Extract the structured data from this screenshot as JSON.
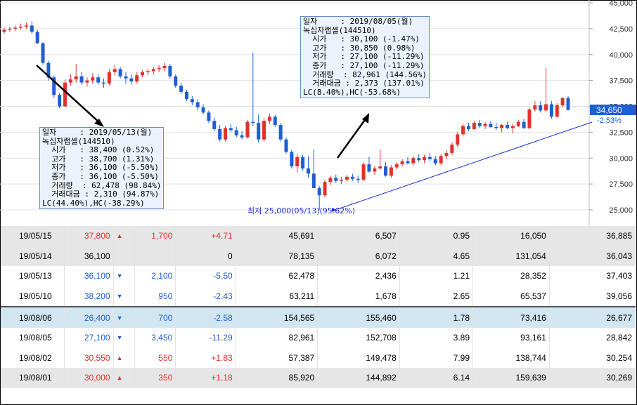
{
  "chart_data": {
    "type": "candlestick",
    "y_axis": {
      "ticks": [
        "45,000",
        "42,500",
        "40,000",
        "37,500",
        "35,000",
        "32,500",
        "30,000",
        "27,500",
        "25,000"
      ],
      "ylim": [
        24000,
        45000
      ]
    },
    "current_price_label": "34,650",
    "current_change_label": "-2.53%",
    "low_label": "최저 25,000(05/13)(95.62%)",
    "series_note": "daily candles (estimated)",
    "candles": [
      [
        42200,
        42600,
        42000,
        42400
      ],
      [
        42400,
        42700,
        42200,
        42500
      ],
      [
        42500,
        42800,
        42300,
        42600
      ],
      [
        42600,
        43000,
        42400,
        42700
      ],
      [
        42700,
        43100,
        42500,
        42800
      ],
      [
        42800,
        43200,
        42000,
        42200
      ],
      [
        42200,
        42400,
        41000,
        41100
      ],
      [
        41100,
        41200,
        39000,
        39200
      ],
      [
        39200,
        39400,
        37500,
        37800
      ],
      [
        37800,
        38000,
        35800,
        36100
      ],
      [
        36100,
        36300,
        34800,
        35000
      ],
      [
        35000,
        37600,
        34900,
        37300
      ],
      [
        37300,
        38100,
        37000,
        37600
      ],
      [
        37600,
        39100,
        37300,
        37900
      ],
      [
        37900,
        38300,
        37100,
        37300
      ],
      [
        37300,
        37800,
        36900,
        37500
      ],
      [
        37500,
        38200,
        37200,
        37800
      ],
      [
        37800,
        38100,
        37100,
        37300
      ],
      [
        37300,
        37700,
        36800,
        37200
      ],
      [
        37200,
        38600,
        37000,
        38300
      ],
      [
        38300,
        39000,
        38000,
        38600
      ],
      [
        38600,
        38800,
        37700,
        37900
      ],
      [
        37900,
        38300,
        37200,
        37700
      ],
      [
        37700,
        38100,
        37100,
        37400
      ],
      [
        37400,
        38300,
        37200,
        38000
      ],
      [
        38000,
        38500,
        37800,
        38300
      ],
      [
        38300,
        38600,
        38000,
        38400
      ],
      [
        38400,
        38800,
        38100,
        38600
      ],
      [
        38600,
        39000,
        38300,
        38700
      ],
      [
        38700,
        39200,
        38400,
        38900
      ],
      [
        38900,
        39100,
        37700,
        37900
      ],
      [
        37900,
        38100,
        36800,
        37000
      ],
      [
        37000,
        37300,
        36200,
        36400
      ],
      [
        36400,
        36600,
        35500,
        35700
      ],
      [
        35700,
        36000,
        35100,
        35400
      ],
      [
        35400,
        35700,
        34600,
        34900
      ],
      [
        34900,
        35200,
        34200,
        34400
      ],
      [
        34400,
        34600,
        33400,
        33600
      ],
      [
        33600,
        33900,
        32600,
        32800
      ],
      [
        32800,
        33200,
        31600,
        31800
      ],
      [
        31800,
        33100,
        31600,
        32900
      ],
      [
        32900,
        33300,
        32500,
        32700
      ],
      [
        32700,
        33000,
        32000,
        32200
      ],
      [
        32200,
        32600,
        31800,
        32000
      ],
      [
        32000,
        33700,
        31900,
        33500
      ],
      [
        33500,
        40200,
        33100,
        33400
      ],
      [
        33400,
        34200,
        31500,
        31800
      ],
      [
        31800,
        33900,
        31600,
        33600
      ],
      [
        33600,
        34300,
        33300,
        34000
      ],
      [
        34000,
        34200,
        33000,
        33200
      ],
      [
        33200,
        33400,
        31600,
        31800
      ],
      [
        31800,
        32000,
        30400,
        30600
      ],
      [
        30600,
        30800,
        29000,
        29200
      ],
      [
        29200,
        30400,
        28600,
        30100
      ],
      [
        30100,
        30300,
        28800,
        29000
      ],
      [
        29000,
        30200,
        28100,
        28500
      ],
      [
        28500,
        30850,
        27100,
        27100
      ],
      [
        27100,
        27300,
        25000,
        26400
      ],
      [
        26400,
        27900,
        26200,
        27700
      ],
      [
        27700,
        28300,
        27400,
        28100
      ],
      [
        28100,
        28400,
        27600,
        27800
      ],
      [
        27800,
        28200,
        27500,
        27900
      ],
      [
        27900,
        28400,
        27700,
        28200
      ],
      [
        28200,
        28500,
        27800,
        28000
      ],
      [
        28000,
        28300,
        27600,
        27900
      ],
      [
        27900,
        29600,
        27800,
        29400
      ],
      [
        29400,
        30100,
        28600,
        28700
      ],
      [
        28700,
        29200,
        28400,
        29000
      ],
      [
        29000,
        30800,
        28900,
        29200
      ],
      [
        29200,
        29600,
        28200,
        28300
      ],
      [
        28300,
        29300,
        28100,
        29100
      ],
      [
        29100,
        29600,
        28900,
        29400
      ],
      [
        29400,
        29900,
        29200,
        29700
      ],
      [
        29700,
        30100,
        29400,
        29500
      ],
      [
        29500,
        30200,
        29300,
        30000
      ],
      [
        30000,
        30400,
        29600,
        29800
      ],
      [
        29800,
        30300,
        29500,
        30100
      ],
      [
        30100,
        30500,
        29700,
        29900
      ],
      [
        29900,
        30200,
        29300,
        29500
      ],
      [
        29500,
        30400,
        29300,
        30200
      ],
      [
        30200,
        30800,
        29900,
        30500
      ],
      [
        30500,
        31500,
        30300,
        31300
      ],
      [
        31300,
        32500,
        31100,
        32300
      ],
      [
        32300,
        33300,
        32100,
        33100
      ],
      [
        33100,
        33400,
        32600,
        32800
      ],
      [
        32800,
        33600,
        32700,
        33400
      ],
      [
        33400,
        33700,
        32900,
        33100
      ],
      [
        33100,
        33500,
        32800,
        33300
      ],
      [
        33300,
        33600,
        32900,
        33000
      ],
      [
        33000,
        33400,
        32700,
        32900
      ],
      [
        32900,
        33300,
        32500,
        33200
      ],
      [
        33200,
        33500,
        32800,
        32900
      ],
      [
        32900,
        33300,
        32400,
        33100
      ],
      [
        33100,
        33700,
        33000,
        33500
      ],
      [
        33500,
        33800,
        32800,
        32900
      ],
      [
        32900,
        34900,
        32800,
        34700
      ],
      [
        34700,
        35500,
        34500,
        35100
      ],
      [
        35100,
        35500,
        34400,
        34600
      ],
      [
        34600,
        38700,
        34500,
        35200
      ],
      [
        35200,
        35500,
        33800,
        34000
      ],
      [
        34000,
        35300,
        33900,
        35100
      ],
      [
        35100,
        35900,
        34900,
        35800
      ],
      [
        35800,
        36000,
        34600,
        34650
      ]
    ]
  },
  "tooltip_left": {
    "rows": [
      "일자     : 2019/05/13(월)",
      "녹십자랩셀(144510)",
      "  시가   : 38,400 (0.52%)",
      "  고가   : 38,700 (1.31%)",
      "  저가   : 36,100 (-5.50%)",
      "  종가   : 36,100 (-5.50%)",
      "  거래량  : 62,478 (98.84%)",
      "  거래대금 : 2,310 (94.87%)",
      "LC(44.40%),HC(-38.29%)"
    ]
  },
  "tooltip_right": {
    "rows": [
      "일자     : 2019/08/05(월)",
      "녹십자랩셀(144510)",
      "  시가   : 30,100 (-1.47%)",
      "  고가   : 30,850 (0.98%)",
      "  저가   : 27,100 (-11.29%)",
      "  종가   : 27,100 (-11.29%)",
      "  거래량  : 82,961 (144.56%)",
      "  거래대금 : 2,373 (137.01%)",
      "LC(8.40%),HC(-53.68%)"
    ]
  },
  "colors": {
    "up": "#e0322c",
    "down": "#1f5fd4",
    "trend": "#1d2bd8",
    "price_tag": "#1f5fd4"
  },
  "table_top": [
    {
      "date": "19/05/15",
      "close": "37,800",
      "arrow": "▲",
      "diff": "1,700",
      "pct": "+4.71",
      "vol": "45,691",
      "c6": "6,507",
      "c7": "0.95",
      "c8": "16,050",
      "c9": "36,885",
      "dir": "up",
      "bg": "g"
    },
    {
      "date": "19/05/14",
      "close": "36,100",
      "arrow": "",
      "diff": "",
      "pct": "0",
      "vol": "78,135",
      "c6": "6,072",
      "c7": "4.65",
      "c8": "131,054",
      "c9": "36,043",
      "dir": "",
      "bg": "g"
    },
    {
      "date": "19/05/13",
      "close": "36,100",
      "arrow": "▼",
      "diff": "2,100",
      "pct": "-5.50",
      "vol": "62,478",
      "c6": "2,436",
      "c7": "1.21",
      "c8": "28,352",
      "c9": "37,403",
      "dir": "dn",
      "bg": "w"
    },
    {
      "date": "19/05/10",
      "close": "38,200",
      "arrow": "▼",
      "diff": "950",
      "pct": "-2.43",
      "vol": "63,211",
      "c6": "1,678",
      "c7": "2.65",
      "c8": "65,537",
      "c9": "39,056",
      "dir": "dn",
      "bg": "w"
    }
  ],
  "table_bottom": [
    {
      "date": "19/08/06",
      "close": "26,400",
      "arrow": "▼",
      "diff": "700",
      "pct": "-2.58",
      "vol": "154,565",
      "c6": "155,460",
      "c7": "1.78",
      "c8": "73,416",
      "c9": "26,677",
      "dir": "dn",
      "bg": "sel"
    },
    {
      "date": "19/08/05",
      "close": "27,100",
      "arrow": "▼",
      "diff": "3,450",
      "pct": "-11.29",
      "vol": "82,961",
      "c6": "152,708",
      "c7": "3.89",
      "c8": "93,161",
      "c9": "28,842",
      "dir": "dn",
      "bg": "w"
    },
    {
      "date": "19/08/02",
      "close": "30,550",
      "arrow": "▲",
      "diff": "550",
      "pct": "+1.83",
      "vol": "57,387",
      "c6": "149,478",
      "c7": "7.99",
      "c8": "138,744",
      "c9": "30,254",
      "dir": "up",
      "bg": "w"
    },
    {
      "date": "19/08/01",
      "close": "30,000",
      "arrow": "▲",
      "diff": "350",
      "pct": "+1.18",
      "vol": "85,920",
      "c6": "144,892",
      "c7": "6.14",
      "c8": "159,639",
      "c9": "30,269",
      "dir": "up",
      "bg": "g"
    }
  ]
}
